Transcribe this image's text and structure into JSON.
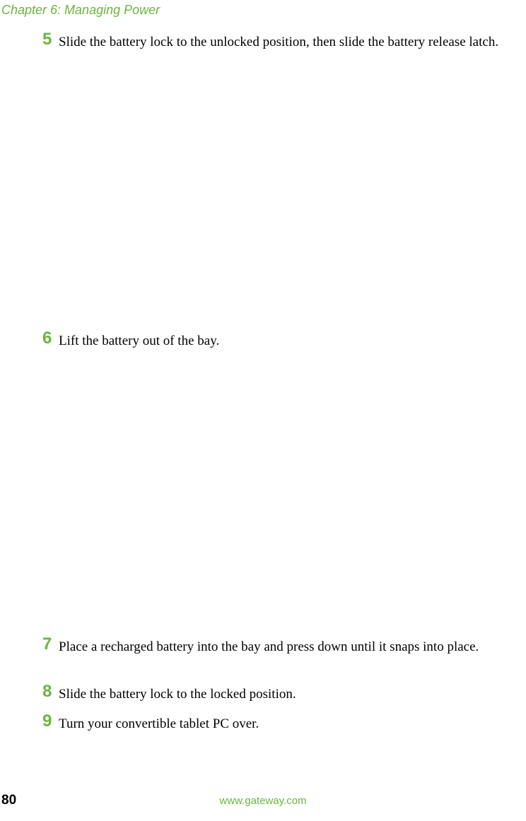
{
  "header": {
    "chapter_title": "Chapter 6: Managing Power"
  },
  "steps": {
    "step5": {
      "number": "5",
      "text": "Slide the battery lock to the unlocked position, then slide the battery release latch."
    },
    "step6": {
      "number": "6",
      "text": "Lift the battery out of the bay."
    },
    "step7": {
      "number": "7",
      "text": "Place a recharged battery into the bay and press down until it snaps into place."
    },
    "step8": {
      "number": "8",
      "text": "Slide the battery lock to the locked position."
    },
    "step9": {
      "number": "9",
      "text": "Turn your convertible tablet PC over."
    }
  },
  "footer": {
    "page_number": "80",
    "url": "www.gateway.com"
  },
  "colors": {
    "accent_green": "#6db33f",
    "text_black": "#000000",
    "background": "#ffffff"
  },
  "typography": {
    "header_fontsize": 18,
    "step_number_fontsize": 24,
    "body_fontsize": 19,
    "page_number_fontsize": 19,
    "footer_url_fontsize": 15
  }
}
